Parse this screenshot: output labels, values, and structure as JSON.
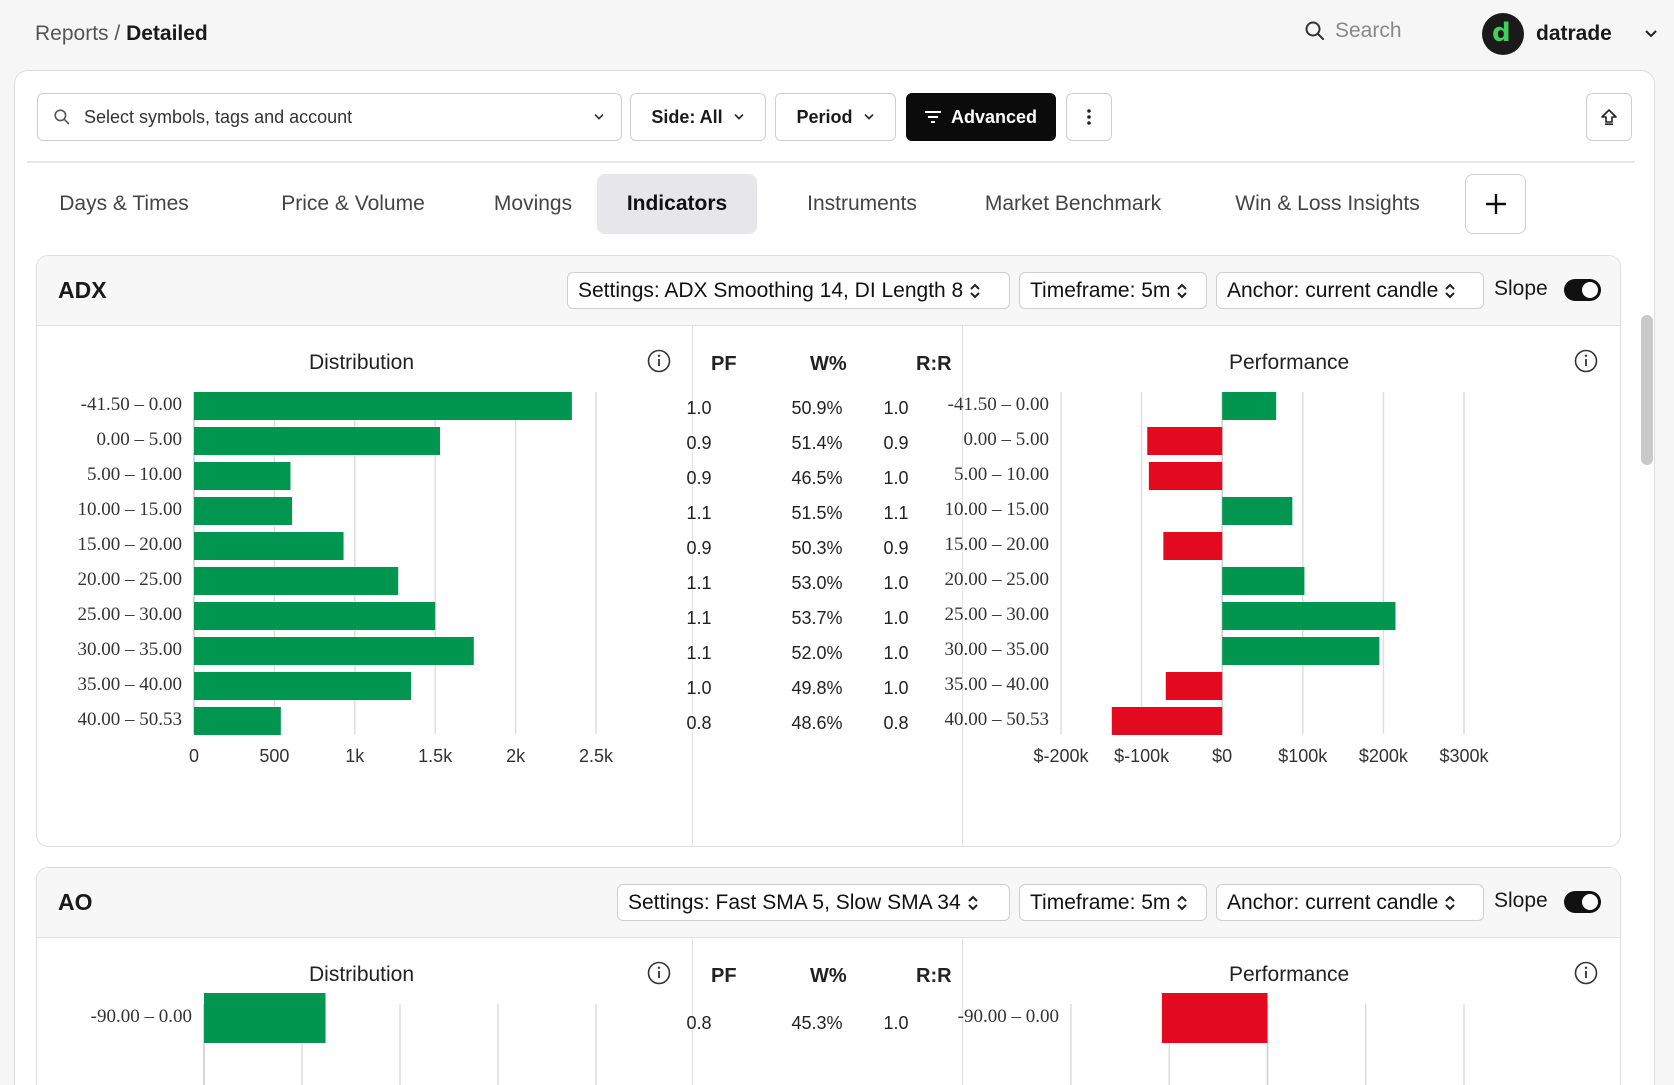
{
  "breadcrumb": {
    "parent": "Reports",
    "separator": "/",
    "current": "Detailed"
  },
  "top_search": {
    "placeholder": "Search"
  },
  "user": {
    "name": "datrade",
    "avatar_letter": "d"
  },
  "filters": {
    "symbol_placeholder": "Select symbols, tags and account",
    "side_label": "Side: All",
    "period_label": "Period",
    "advanced_label": "Advanced"
  },
  "tabs": [
    "Days & Times",
    "Price & Volume",
    "Movings",
    "Indicators",
    "Instruments",
    "Market Benchmark",
    "Win & Loss Insights"
  ],
  "active_tab": "Indicators",
  "colors": {
    "positive": "#009650",
    "negative": "#e30a1f",
    "accent": "#0b0b0b"
  },
  "icons": [
    "search-icon",
    "chevron-down-icon",
    "filter-icon",
    "more-vertical-icon",
    "share-icon",
    "plus-icon",
    "info-icon",
    "sort-icon",
    "toggle-switch"
  ],
  "cards": [
    {
      "title": "ADX",
      "settings": "Settings: ADX Smoothing 14, DI Length 8",
      "timeframe": "Timeframe: 5m",
      "anchor": "Anchor: current candle",
      "slope_label": "Slope",
      "slope_on": true,
      "distribution_title": "Distribution",
      "performance_title": "Performance",
      "table_headers": [
        "PF",
        "W%",
        "R:R"
      ],
      "chart_data": [
        {
          "type": "bar",
          "orientation": "horizontal",
          "title": "Distribution",
          "categories": [
            "-41.50 – 0.00",
            "0.00 – 5.00",
            "5.00 – 10.00",
            "10.00 – 15.00",
            "15.00 – 20.00",
            "20.00 – 25.00",
            "25.00 – 30.00",
            "30.00 – 35.00",
            "35.00 – 40.00",
            "40.00 – 50.53"
          ],
          "values": [
            2350,
            1530,
            600,
            610,
            930,
            1270,
            1500,
            1740,
            1350,
            540
          ],
          "xlim": [
            0,
            2500
          ],
          "xticks": [
            0,
            500,
            1000,
            1500,
            2000,
            2500
          ],
          "xtick_labels": [
            "0",
            "500",
            "1k",
            "1.5k",
            "2k",
            "2.5k"
          ],
          "grid": true
        },
        {
          "type": "bar",
          "orientation": "horizontal",
          "title": "Performance",
          "categories": [
            "-41.50 – 0.00",
            "0.00 – 5.00",
            "5.00 – 10.00",
            "10.00 – 15.00",
            "15.00 – 20.00",
            "20.00 – 25.00",
            "25.00 – 30.00",
            "30.00 – 35.00",
            "35.00 – 40.00",
            "40.00 – 50.53"
          ],
          "values": [
            67000,
            -93000,
            -91000,
            87000,
            -73000,
            102000,
            215000,
            195000,
            -70000,
            -137000
          ],
          "xlim": [
            -200000,
            300000
          ],
          "xticks": [
            -200000,
            -100000,
            0,
            100000,
            200000,
            300000
          ],
          "xtick_labels": [
            "$-200k",
            "$-100k",
            "$0",
            "$100k",
            "$200k",
            "$300k"
          ],
          "grid": true
        }
      ],
      "rows": [
        {
          "pf": "1.0",
          "w": "50.9%",
          "rr": "1.0"
        },
        {
          "pf": "0.9",
          "w": "51.4%",
          "rr": "0.9"
        },
        {
          "pf": "0.9",
          "w": "46.5%",
          "rr": "1.0"
        },
        {
          "pf": "1.1",
          "w": "51.5%",
          "rr": "1.1"
        },
        {
          "pf": "0.9",
          "w": "50.3%",
          "rr": "0.9"
        },
        {
          "pf": "1.1",
          "w": "53.0%",
          "rr": "1.0"
        },
        {
          "pf": "1.1",
          "w": "53.7%",
          "rr": "1.0"
        },
        {
          "pf": "1.1",
          "w": "52.0%",
          "rr": "1.0"
        },
        {
          "pf": "1.0",
          "w": "49.8%",
          "rr": "1.0"
        },
        {
          "pf": "0.8",
          "w": "48.6%",
          "rr": "0.8"
        }
      ]
    },
    {
      "title": "AO",
      "settings": "Settings: Fast SMA 5, Slow SMA 34",
      "timeframe": "Timeframe: 5m",
      "anchor": "Anchor: current candle",
      "slope_label": "Slope",
      "slope_on": true,
      "distribution_title": "Distribution",
      "performance_title": "Performance",
      "table_headers": [
        "PF",
        "W%",
        "R:R"
      ],
      "chart_data": [
        {
          "type": "bar",
          "orientation": "horizontal",
          "title": "Distribution",
          "categories": [
            "-90.00 – 0.00"
          ],
          "values": [
            1550
          ],
          "xlim": [
            0,
            5000
          ],
          "grid": true
        },
        {
          "type": "bar",
          "orientation": "horizontal",
          "title": "Performance",
          "categories": [
            "-90.00 – 0.00"
          ],
          "values": [
            -215000
          ],
          "xlim": [
            -400000,
            400000
          ],
          "grid": true
        }
      ],
      "rows": [
        {
          "pf": "0.8",
          "w": "45.3%",
          "rr": "1.0"
        }
      ]
    }
  ]
}
